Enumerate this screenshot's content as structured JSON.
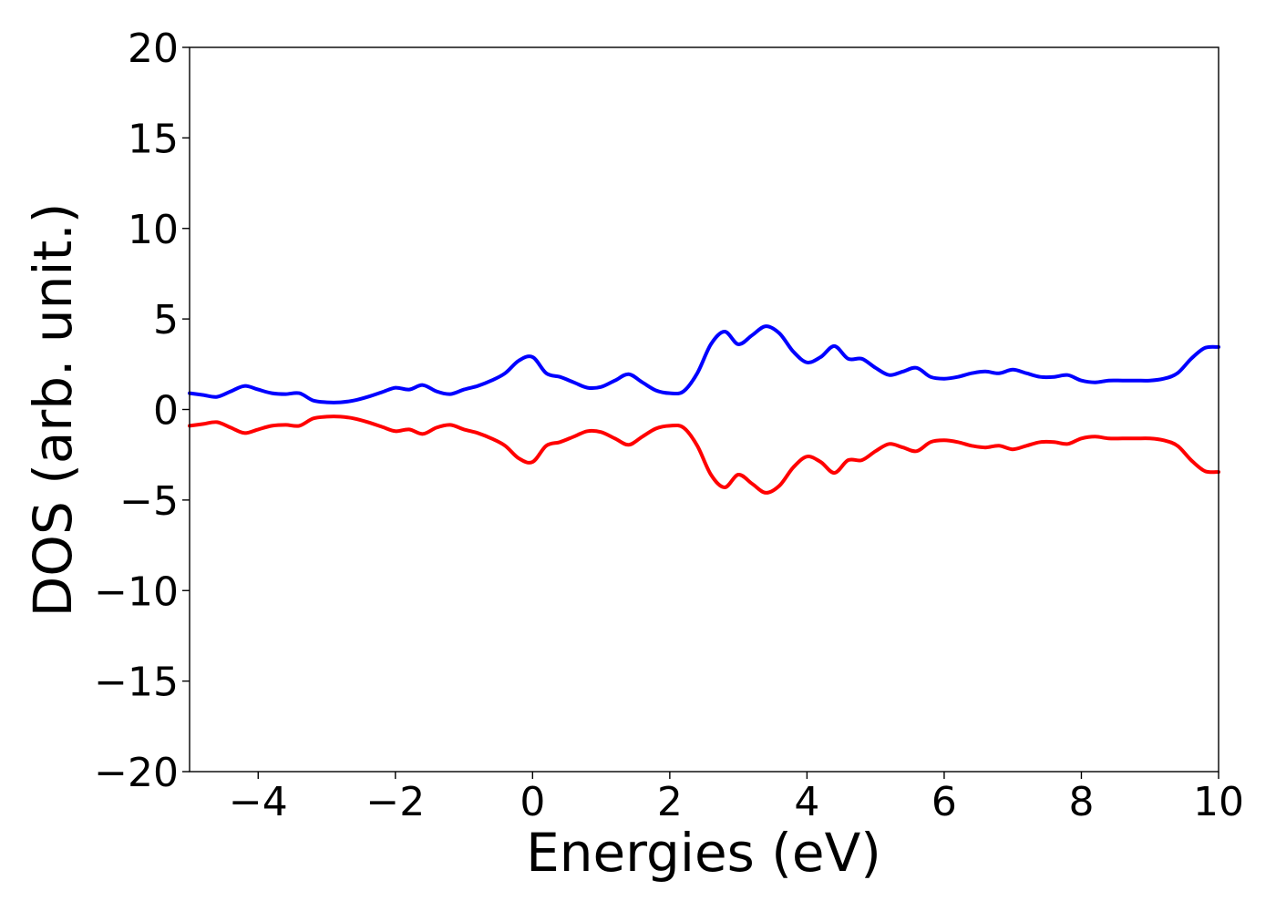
{
  "chart_data": {
    "type": "line",
    "title": "",
    "xlabel": "Energies (eV)",
    "ylabel": "DOS (arb. unit.)",
    "xlim": [
      -5,
      10
    ],
    "ylim": [
      -20,
      20
    ],
    "x_ticks": [
      -4,
      -2,
      0,
      2,
      4,
      6,
      8,
      10
    ],
    "x_tick_labels": [
      "−4",
      "−2",
      "0",
      "2",
      "4",
      "6",
      "8",
      "10"
    ],
    "y_ticks": [
      20,
      15,
      10,
      5,
      0,
      -5,
      -10,
      -15,
      -20
    ],
    "y_tick_labels": [
      "20",
      "15",
      "10",
      "5",
      "0",
      "−5",
      "−10",
      "−15",
      "−20"
    ],
    "grid": false,
    "legend": "none",
    "series": [
      {
        "color": "#0000ff",
        "x": [
          -5.0,
          -4.8,
          -4.6,
          -4.4,
          -4.2,
          -4.0,
          -3.8,
          -3.6,
          -3.4,
          -3.2,
          -3.0,
          -2.8,
          -2.6,
          -2.4,
          -2.2,
          -2.0,
          -1.8,
          -1.6,
          -1.4,
          -1.2,
          -1.0,
          -0.8,
          -0.6,
          -0.4,
          -0.2,
          0.0,
          0.2,
          0.4,
          0.6,
          0.8,
          1.0,
          1.2,
          1.4,
          1.6,
          1.8,
          2.0,
          2.2,
          2.4,
          2.6,
          2.8,
          3.0,
          3.2,
          3.4,
          3.6,
          3.8,
          4.0,
          4.2,
          4.4,
          4.6,
          4.8,
          5.0,
          5.2,
          5.4,
          5.6,
          5.8,
          6.0,
          6.2,
          6.4,
          6.6,
          6.8,
          7.0,
          7.2,
          7.4,
          7.6,
          7.8,
          8.0,
          8.2,
          8.4,
          8.6,
          8.8,
          9.0,
          9.2,
          9.4,
          9.6,
          9.8,
          10.0
        ],
        "y": [
          0.9,
          0.8,
          0.7,
          1.0,
          1.3,
          1.1,
          0.9,
          0.85,
          0.9,
          0.5,
          0.4,
          0.4,
          0.5,
          0.7,
          0.95,
          1.2,
          1.1,
          1.35,
          1.0,
          0.85,
          1.1,
          1.3,
          1.6,
          2.0,
          2.7,
          2.9,
          2.0,
          1.8,
          1.5,
          1.2,
          1.25,
          1.6,
          1.95,
          1.5,
          1.05,
          0.9,
          1.0,
          2.0,
          3.6,
          4.3,
          3.6,
          4.1,
          4.6,
          4.2,
          3.2,
          2.6,
          2.9,
          3.5,
          2.8,
          2.8,
          2.3,
          1.9,
          2.1,
          2.3,
          1.8,
          1.7,
          1.8,
          2.0,
          2.1,
          2.0,
          2.2,
          2.0,
          1.8,
          1.8,
          1.9,
          1.6,
          1.5,
          1.6,
          1.6,
          1.6,
          1.6,
          1.7,
          2.0,
          2.8,
          3.4,
          3.45
        ]
      },
      {
        "color": "#ff0000",
        "x": [
          -5.0,
          -4.8,
          -4.6,
          -4.4,
          -4.2,
          -4.0,
          -3.8,
          -3.6,
          -3.4,
          -3.2,
          -3.0,
          -2.8,
          -2.6,
          -2.4,
          -2.2,
          -2.0,
          -1.8,
          -1.6,
          -1.4,
          -1.2,
          -1.0,
          -0.8,
          -0.6,
          -0.4,
          -0.2,
          0.0,
          0.2,
          0.4,
          0.6,
          0.8,
          1.0,
          1.2,
          1.4,
          1.6,
          1.8,
          2.0,
          2.2,
          2.4,
          2.6,
          2.8,
          3.0,
          3.2,
          3.4,
          3.6,
          3.8,
          4.0,
          4.2,
          4.4,
          4.6,
          4.8,
          5.0,
          5.2,
          5.4,
          5.6,
          5.8,
          6.0,
          6.2,
          6.4,
          6.6,
          6.8,
          7.0,
          7.2,
          7.4,
          7.6,
          7.8,
          8.0,
          8.2,
          8.4,
          8.6,
          8.8,
          9.0,
          9.2,
          9.4,
          9.6,
          9.8,
          10.0
        ],
        "y": [
          -0.9,
          -0.8,
          -0.7,
          -1.0,
          -1.3,
          -1.1,
          -0.9,
          -0.85,
          -0.9,
          -0.5,
          -0.4,
          -0.4,
          -0.5,
          -0.7,
          -0.95,
          -1.2,
          -1.1,
          -1.35,
          -1.0,
          -0.85,
          -1.1,
          -1.3,
          -1.6,
          -2.0,
          -2.7,
          -2.9,
          -2.0,
          -1.8,
          -1.5,
          -1.2,
          -1.25,
          -1.6,
          -1.95,
          -1.5,
          -1.05,
          -0.9,
          -1.0,
          -2.0,
          -3.6,
          -4.3,
          -3.6,
          -4.1,
          -4.6,
          -4.2,
          -3.2,
          -2.6,
          -2.9,
          -3.5,
          -2.8,
          -2.8,
          -2.3,
          -1.9,
          -2.1,
          -2.3,
          -1.8,
          -1.7,
          -1.8,
          -2.0,
          -2.1,
          -2.0,
          -2.2,
          -2.0,
          -1.8,
          -1.8,
          -1.9,
          -1.6,
          -1.5,
          -1.6,
          -1.6,
          -1.6,
          -1.6,
          -1.7,
          -2.0,
          -2.8,
          -3.4,
          -3.45
        ]
      }
    ]
  }
}
